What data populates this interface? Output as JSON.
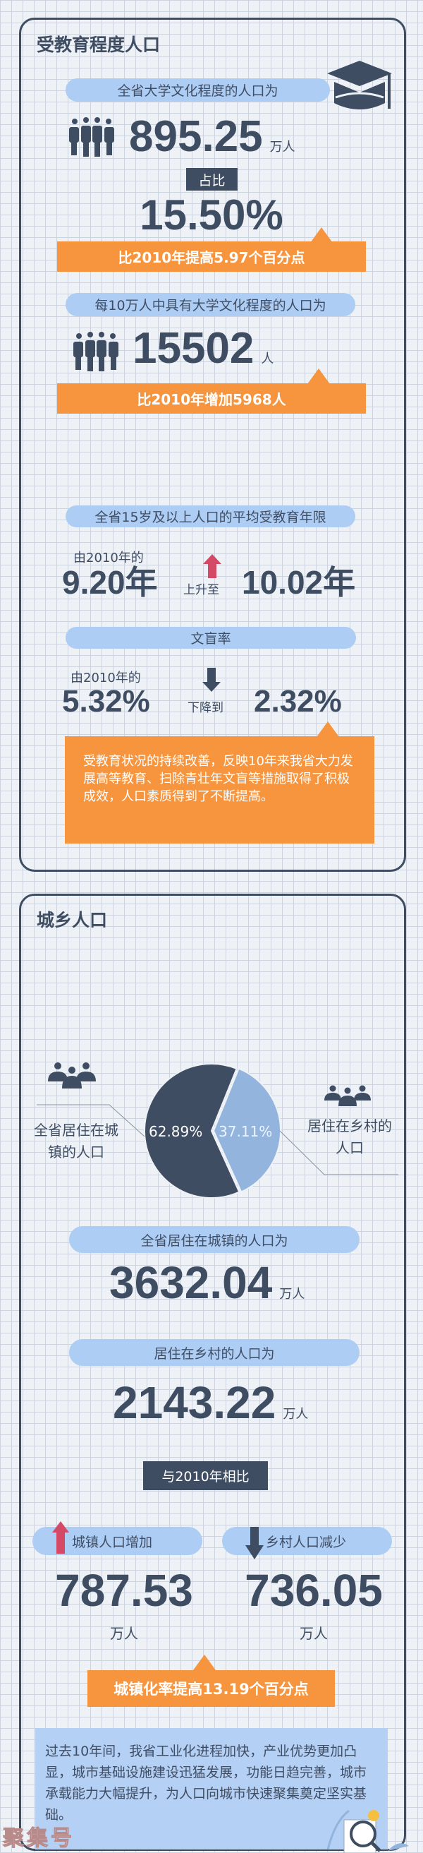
{
  "education": {
    "title": "受教育程度人口",
    "college_label": "全省大学文化程度的人口为",
    "college_value": "895.25",
    "college_unit": "万人",
    "share_label": "占比",
    "share_value": "15.50%",
    "share_change": "比2010年提高5.97个百分点",
    "per100k_label": "每10万人中具有大学文化程度的人口为",
    "per100k_value": "15502",
    "per100k_unit": "人",
    "per100k_change": "比2010年增加5968人",
    "years_label": "全省15岁及以上人口的平均受教育年限",
    "years_from_label": "由2010年的",
    "years_from": "9.20年",
    "years_verb": "上升至",
    "years_to": "10.02年",
    "illiteracy_label": "文盲率",
    "illiteracy_from_label": "由2010年的",
    "illiteracy_from": "5.32%",
    "illiteracy_verb": "下降到",
    "illiteracy_to": "2.32%",
    "summary": "受教育状况的持续改善，反映10年来我省大力发展高等教育、扫除青壮年文盲等措施取得了积极成效，人口素质得到了不断提高。"
  },
  "urban_rural": {
    "title": "城乡人口",
    "chart_data": {
      "type": "pie",
      "categories": [
        "全省居住在城镇的人口",
        "居住在乡村的人口"
      ],
      "values": [
        62.89,
        37.11
      ],
      "labels": [
        "62.89%",
        "37.11%"
      ],
      "colors": [
        "#3f4d63",
        "#93b4dc"
      ]
    },
    "urban_legend": "全省居住在城镇的人口",
    "rural_legend": "居住在乡村的人口",
    "urban_label": "全省居住在城镇的人口为",
    "urban_value": "3632.04",
    "urban_unit": "万人",
    "rural_label": "居住在乡村的人口为",
    "rural_value": "2143.22",
    "rural_unit": "万人",
    "compare_label": "与2010年相比",
    "urban_increase_label": "城镇人口增加",
    "urban_increase_value": "787.53",
    "urban_increase_unit": "万人",
    "rural_decrease_label": "乡村人口减少",
    "rural_decrease_value": "736.05",
    "rural_decrease_unit": "万人",
    "urbanization_change": "城镇化率提高13.19个百分点",
    "summary": "过去10年间，我省工业化进程加快，产业优势更加凸显，城市基础设施建设迅猛发展，功能日趋完善，城市承载能力大幅提升，为人口向城市快速聚集奠定坚实基础。"
  },
  "watermark": "聚集号",
  "colors": {
    "dark": "#3f4d63",
    "pill": "#aecdf5",
    "orange": "#f7953e",
    "up_arrow": "#d44a66",
    "pie_light": "#93b4dc"
  }
}
